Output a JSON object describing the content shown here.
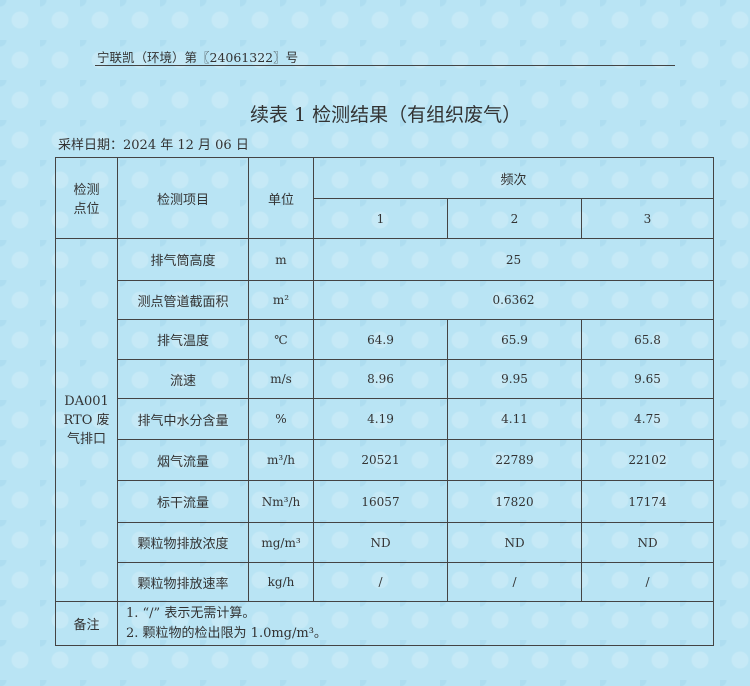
{
  "header": {
    "doc_number": "宁联凯（环境）第〖24061322〗号",
    "title": "续表 1 检测结果（有组织废气）",
    "sampling_date": "采样日期：2024 年 12 月 06 日"
  },
  "table": {
    "headers": {
      "point": "检测点位",
      "item": "检测项目",
      "unit": "单位",
      "frequency": "频次",
      "freq_cols": [
        "1",
        "2",
        "3"
      ]
    },
    "point": "DA001 RTO 废气排口",
    "rows": [
      {
        "item": "排气筒高度",
        "unit": "m",
        "merged": "25"
      },
      {
        "item": "测点管道截面积",
        "unit": "m²",
        "merged": "0.6362"
      },
      {
        "item": "排气温度",
        "unit": "℃",
        "values": [
          "64.9",
          "65.9",
          "65.8"
        ]
      },
      {
        "item": "流速",
        "unit": "m/s",
        "values": [
          "8.96",
          "9.95",
          "9.65"
        ]
      },
      {
        "item": "排气中水分含量",
        "unit": "%",
        "values": [
          "4.19",
          "4.11",
          "4.75"
        ]
      },
      {
        "item": "烟气流量",
        "unit": "m³/h",
        "values": [
          "20521",
          "22789",
          "22102"
        ]
      },
      {
        "item": "标干流量",
        "unit": "Nm³/h",
        "values": [
          "16057",
          "17820",
          "17174"
        ]
      },
      {
        "item": "颗粒物排放浓度",
        "unit": "mg/m³",
        "values": [
          "ND",
          "ND",
          "ND"
        ]
      },
      {
        "item": "颗粒物排放速率",
        "unit": "kg/h",
        "values": [
          "/",
          "/",
          "/"
        ]
      }
    ],
    "remarks_label": "备注",
    "remarks": [
      "1. “/” 表示无需计算。",
      "2. 颗粒物的检出限为 1.0mg/m³。"
    ]
  }
}
